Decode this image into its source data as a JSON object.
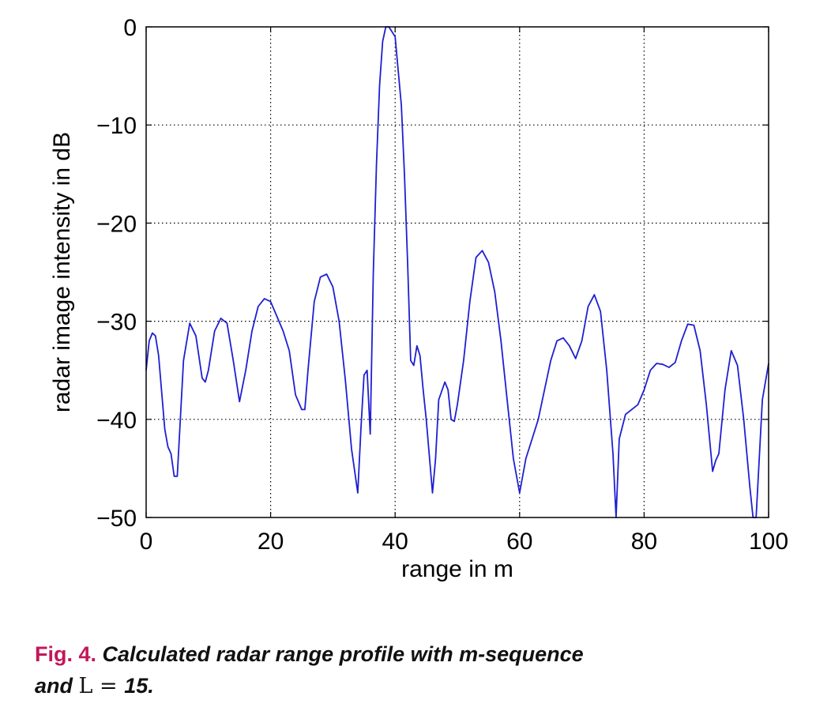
{
  "chart_data": {
    "type": "line",
    "xlabel": "range in m",
    "ylabel": "radar image intensity in dB",
    "xlim": [
      0,
      100
    ],
    "ylim": [
      -50,
      0
    ],
    "xticks": [
      0,
      20,
      40,
      60,
      80,
      100
    ],
    "xtick_labels": [
      "0",
      "20",
      "40",
      "60",
      "80",
      "100"
    ],
    "yticks": [
      0,
      -10,
      -20,
      -30,
      -40,
      -50
    ],
    "ytick_labels": [
      "0",
      "−10",
      "−20",
      "−30",
      "−40",
      "−50"
    ],
    "grid": true,
    "series": [
      {
        "name": "range profile",
        "color": "#1f1fd2",
        "x": [
          0,
          0.5,
          1,
          1.5,
          2,
          3,
          3.5,
          4,
          4.5,
          5,
          6,
          7,
          8,
          9,
          9.5,
          10,
          11,
          12,
          13,
          14,
          15,
          16,
          17,
          18,
          19,
          20,
          21,
          22,
          23,
          24,
          25,
          25.5,
          26,
          27,
          28,
          29,
          30,
          31,
          32,
          33,
          34,
          34.5,
          35,
          35.5,
          36,
          36.5,
          37,
          37.5,
          38,
          38.5,
          39,
          40,
          41,
          41.5,
          42,
          42.5,
          43,
          43.5,
          44,
          44.5,
          45,
          46,
          46.5,
          47,
          48,
          48.5,
          49,
          49.5,
          50,
          51,
          52,
          53,
          54,
          55,
          56,
          57,
          58,
          59,
          60,
          61,
          62,
          63,
          64,
          65,
          66,
          67,
          68,
          69,
          70,
          71,
          72,
          73,
          74,
          75,
          75.5,
          76,
          77,
          78,
          79,
          80,
          81,
          82,
          83,
          84,
          85,
          86,
          87,
          88,
          89,
          90,
          91,
          91.5,
          92,
          93,
          94,
          95,
          96,
          97,
          97.5,
          98,
          99,
          100
        ],
        "values": [
          -35,
          -32,
          -31.2,
          -31.5,
          -33.5,
          -41,
          -42.8,
          -43.5,
          -45.8,
          -45.8,
          -34,
          -30.2,
          -31.5,
          -35.8,
          -36.2,
          -35,
          -31,
          -29.7,
          -30.2,
          -34,
          -38.2,
          -35,
          -31,
          -28.5,
          -27.7,
          -28,
          -29.5,
          -31,
          -33,
          -37.5,
          -39,
          -39,
          -35,
          -28,
          -25.5,
          -25.2,
          -26.5,
          -30,
          -36,
          -43,
          -47.5,
          -41,
          -35.5,
          -35,
          -41.5,
          -25,
          -14,
          -6,
          -1.5,
          0,
          0,
          -1,
          -8,
          -15,
          -24,
          -34,
          -34.5,
          -32.5,
          -33.5,
          -37,
          -40,
          -47.5,
          -44,
          -38,
          -36.2,
          -37,
          -40,
          -40.2,
          -38.5,
          -34,
          -28,
          -23.5,
          -22.8,
          -24,
          -27,
          -32,
          -38,
          -44,
          -47.5,
          -44,
          -42,
          -40,
          -37,
          -34,
          -32,
          -31.7,
          -32.5,
          -33.8,
          -32,
          -28.5,
          -27.3,
          -29,
          -35,
          -43.5,
          -50,
          -42,
          -39.5,
          -39,
          -38.5,
          -37,
          -35,
          -34.3,
          -34.4,
          -34.7,
          -34.2,
          -32,
          -30.3,
          -30.4,
          -33,
          -38.5,
          -45.3,
          -44.2,
          -43.5,
          -37,
          -33,
          -34.5,
          -40,
          -47,
          -50,
          -50,
          -38,
          -34.3
        ]
      }
    ]
  },
  "caption": {
    "fig_label": "Fig. 4.",
    "text_line1": "Calculated radar range profile with m-sequence",
    "text_line2_prefix": "and ",
    "math_var": "L",
    "math_eq": " = ",
    "text_line2_suffix": "15."
  }
}
